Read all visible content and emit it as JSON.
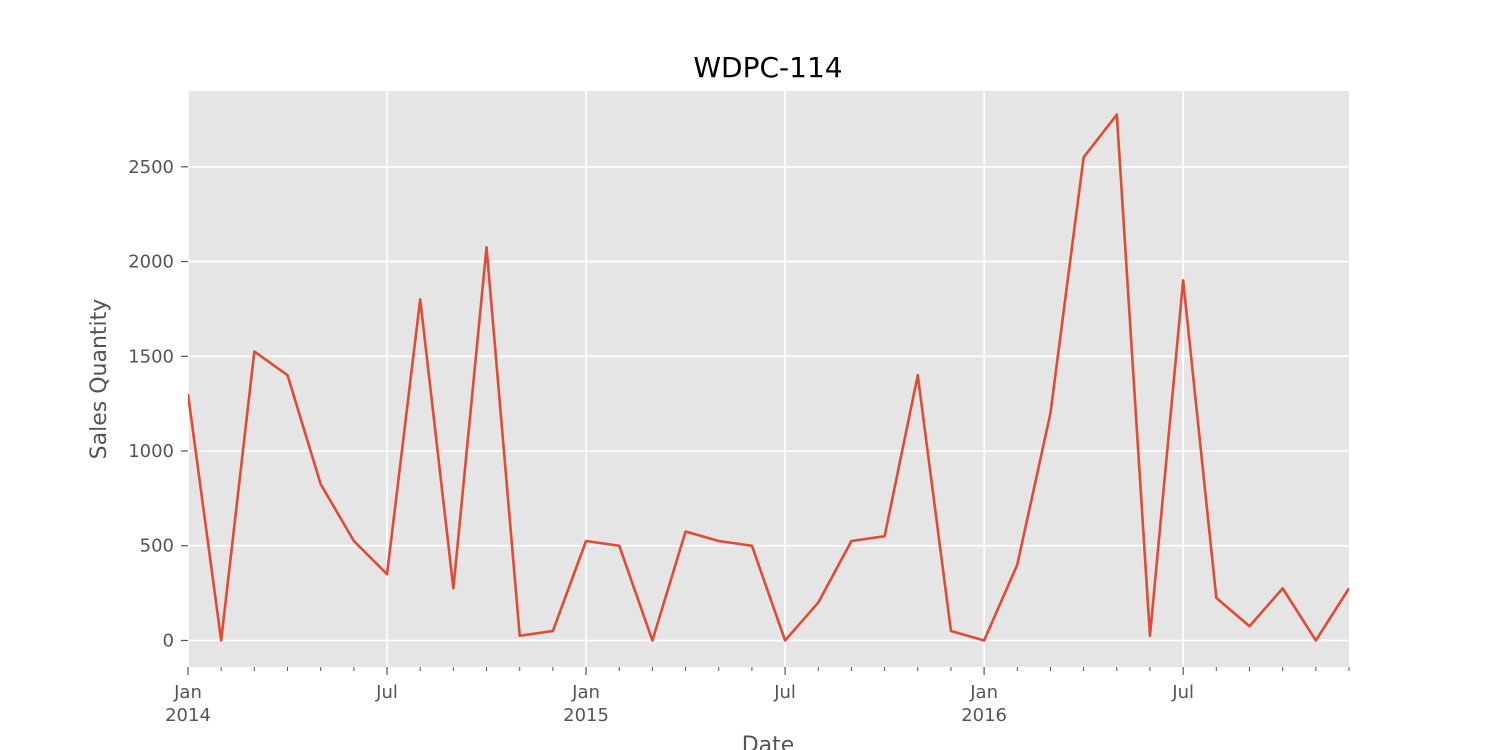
{
  "chart_data": {
    "type": "line",
    "title": "WDPC-114",
    "xlabel": "Date",
    "ylabel": "Sales Quantity",
    "xlim": [
      "2014-01",
      "2016-12"
    ],
    "ylim": [
      -140,
      2900
    ],
    "grid": true,
    "yticks": [
      0,
      500,
      1000,
      1500,
      2000,
      2500
    ],
    "xticks": [
      {
        "date": "2014-01",
        "label": "Jan",
        "year": "2014"
      },
      {
        "date": "2014-07",
        "label": "Jul",
        "year": ""
      },
      {
        "date": "2015-01",
        "label": "Jan",
        "year": "2015"
      },
      {
        "date": "2015-07",
        "label": "Jul",
        "year": ""
      },
      {
        "date": "2016-01",
        "label": "Jan",
        "year": "2016"
      },
      {
        "date": "2016-07",
        "label": "Jul",
        "year": ""
      }
    ],
    "series": [
      {
        "name": "",
        "color": "#E24A33",
        "x": [
          "2014-01",
          "2014-02",
          "2014-03",
          "2014-04",
          "2014-05",
          "2014-06",
          "2014-07",
          "2014-08",
          "2014-09",
          "2014-10",
          "2014-11",
          "2014-12",
          "2015-01",
          "2015-02",
          "2015-03",
          "2015-04",
          "2015-05",
          "2015-06",
          "2015-07",
          "2015-08",
          "2015-09",
          "2015-10",
          "2015-11",
          "2015-12",
          "2016-01",
          "2016-02",
          "2016-03",
          "2016-04",
          "2016-05",
          "2016-06",
          "2016-07",
          "2016-08",
          "2016-09",
          "2016-10",
          "2016-11",
          "2016-12"
        ],
        "values": [
          1300,
          0,
          1525,
          1400,
          825,
          525,
          350,
          1800,
          275,
          2075,
          25,
          50,
          525,
          500,
          0,
          575,
          525,
          500,
          0,
          200,
          525,
          550,
          1400,
          50,
          0,
          400,
          1200,
          2550,
          2775,
          25,
          1900,
          225,
          75,
          275,
          0,
          275
        ]
      }
    ]
  }
}
